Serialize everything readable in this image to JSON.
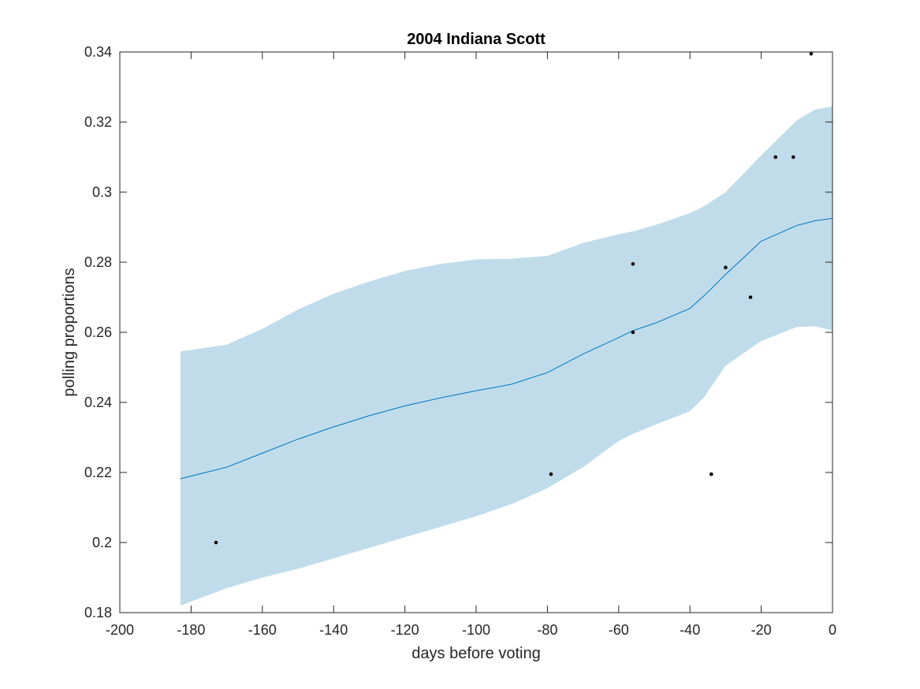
{
  "chart_data": {
    "type": "line",
    "title": "2004 Indiana Scott",
    "xlabel": "days before voting",
    "ylabel": "polling proportions",
    "xlim": [
      -200,
      0
    ],
    "ylim": [
      0.18,
      0.34
    ],
    "x_ticks": [
      -200,
      -180,
      -160,
      -140,
      -120,
      -100,
      -80,
      -60,
      -40,
      -20,
      0
    ],
    "x_tick_labels": [
      "-200",
      "-180",
      "-160",
      "-140",
      "-120",
      "-100",
      "-80",
      "-60",
      "-40",
      "-20",
      "0"
    ],
    "y_ticks": [
      0.18,
      0.2,
      0.22,
      0.24,
      0.26,
      0.28,
      0.3,
      0.32,
      0.34
    ],
    "y_tick_labels": [
      "0.18",
      "0.2",
      "0.22",
      "0.24",
      "0.26",
      "0.28",
      "0.3",
      "0.32",
      "0.34"
    ],
    "grid": false,
    "colors": {
      "band": "#c0dcea",
      "line": "#0072bd",
      "points": "#000000",
      "axes": "#262626"
    },
    "series": [
      {
        "kind": "band",
        "x": [
          -183,
          -170,
          -160,
          -150,
          -140,
          -130,
          -120,
          -110,
          -100,
          -90,
          -80,
          -70,
          -60,
          -56,
          -50,
          -40,
          -36,
          -30,
          -20,
          -10,
          -5,
          0
        ],
        "upper": [
          0.2545,
          0.2565,
          0.261,
          0.2665,
          0.271,
          0.2745,
          0.2775,
          0.2795,
          0.2808,
          0.281,
          0.2818,
          0.2855,
          0.288,
          0.2888,
          0.2905,
          0.294,
          0.296,
          0.3,
          0.3105,
          0.3205,
          0.3235,
          0.3245
        ],
        "lower": [
          0.182,
          0.187,
          0.19,
          0.1925,
          0.1955,
          0.1985,
          0.2015,
          0.2045,
          0.2075,
          0.211,
          0.2155,
          0.2215,
          0.229,
          0.231,
          0.2335,
          0.2375,
          0.2415,
          0.2505,
          0.2575,
          0.2615,
          0.2617,
          0.2605
        ]
      },
      {
        "kind": "line",
        "x": [
          -183,
          -170,
          -160,
          -150,
          -140,
          -130,
          -120,
          -110,
          -100,
          -90,
          -80,
          -70,
          -60,
          -56,
          -50,
          -40,
          -36,
          -30,
          -20,
          -10,
          -5,
          0
        ],
        "y": [
          0.2182,
          0.2215,
          0.2255,
          0.2295,
          0.233,
          0.2362,
          0.239,
          0.2413,
          0.2433,
          0.2452,
          0.2485,
          0.2538,
          0.2585,
          0.2605,
          0.2625,
          0.2668,
          0.2705,
          0.2765,
          0.286,
          0.2905,
          0.2918,
          0.2925
        ]
      },
      {
        "kind": "scatter",
        "x": [
          -173,
          -79,
          -56,
          -56,
          -34,
          -30,
          -23,
          -16,
          -11,
          -6
        ],
        "y": [
          0.2,
          0.2195,
          0.2795,
          0.26,
          0.2195,
          0.2785,
          0.27,
          0.31,
          0.31,
          0.3395
        ]
      }
    ]
  }
}
